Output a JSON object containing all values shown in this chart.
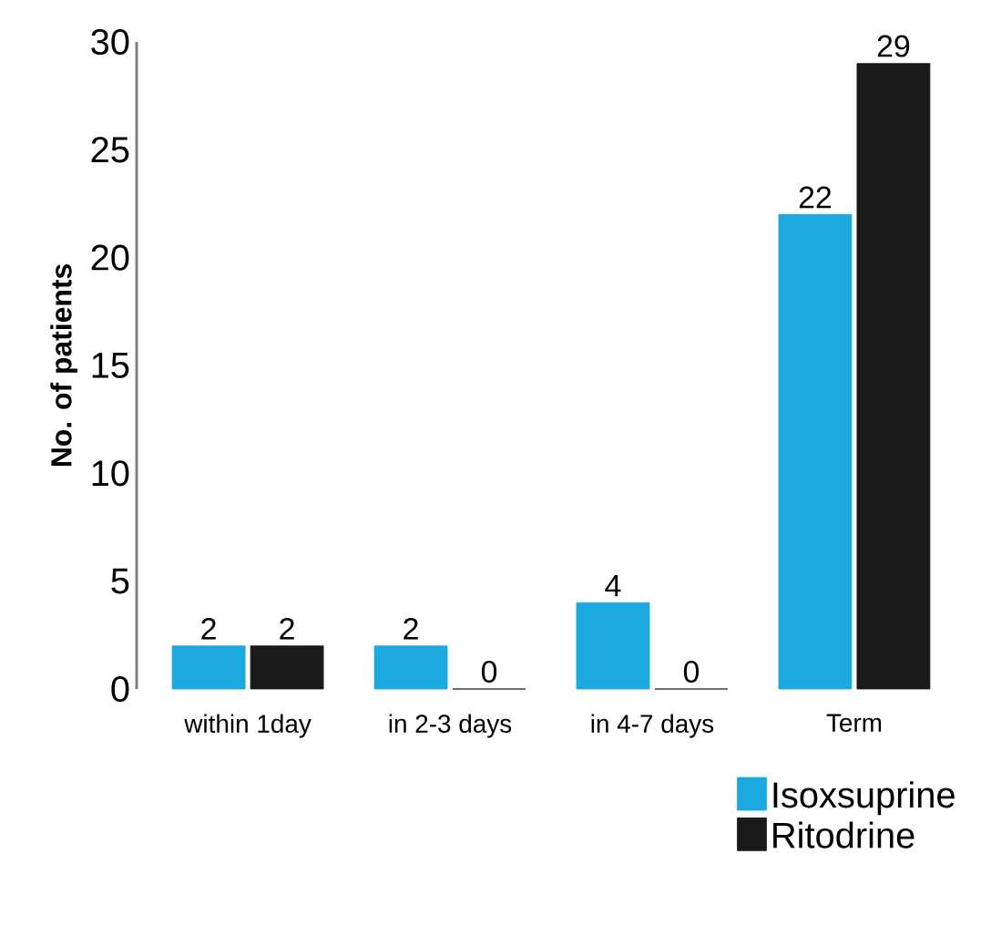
{
  "chart_data": {
    "type": "bar",
    "ylabel": "No. of patients",
    "categories": [
      "within 1day",
      "in 2-3 days",
      "in 4-7 days",
      "Term"
    ],
    "series": [
      {
        "name": "Isoxsuprine",
        "color": "#1ba9e0",
        "values": [
          2,
          2,
          4,
          22
        ]
      },
      {
        "name": "Ritodrine",
        "color": "#1a1a1a",
        "values": [
          2,
          0,
          0,
          29
        ]
      }
    ],
    "ylim": [
      0,
      30
    ],
    "yticks": [
      0,
      5,
      10,
      15,
      20,
      25,
      30
    ],
    "data_labels": true,
    "legend": "bottom right",
    "grid": false
  }
}
